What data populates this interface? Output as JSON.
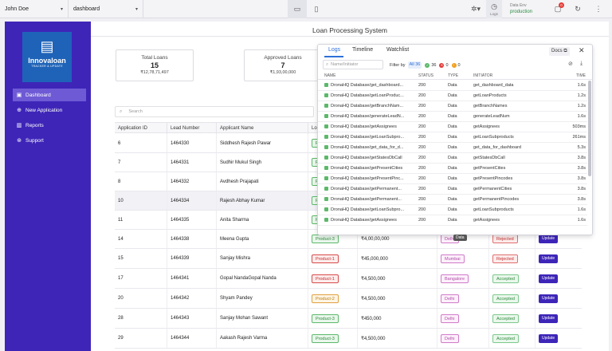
{
  "topbar": {
    "user": "John Doe",
    "page": "dashboard",
    "logs_label": "Logs",
    "env_label": "Data Env",
    "env_value": "production",
    "notif_count": "0"
  },
  "sidebar": {
    "logo_name": "Innovaloan",
    "logo_tag": "TRACKER & UPDATE",
    "items": [
      {
        "label": "Dashboard",
        "icon": "dashboard-icon"
      },
      {
        "label": "New Application",
        "icon": "plus-circle-icon"
      },
      {
        "label": "Reports",
        "icon": "reports-icon"
      },
      {
        "label": "Support",
        "icon": "support-icon"
      }
    ]
  },
  "main": {
    "title": "Loan Processing System",
    "stats": [
      {
        "label": "Total Loans",
        "count": "15",
        "amount": "₹12,78,71,497"
      },
      {
        "label": "Approved Loans",
        "count": "7",
        "amount": "₹1,93,00,000"
      }
    ],
    "search_placeholder": "Search"
  },
  "table": {
    "headers": [
      "Application ID",
      "Lead Number",
      "Applicant Name",
      "Lo"
    ],
    "rows": [
      {
        "id": "6",
        "lead": "1464330",
        "name": "Siddhesh Rajesh Pawar",
        "product": "P"
      },
      {
        "id": "7",
        "lead": "1464331",
        "name": "Sudhir Mukul Singh",
        "product": "P"
      },
      {
        "id": "8",
        "lead": "1464332",
        "name": "Avdhesh Prajapati",
        "product": "P"
      },
      {
        "id": "10",
        "lead": "1464334",
        "name": "Rajesh Abhay Kumar",
        "product": "P"
      },
      {
        "id": "11",
        "lead": "1464335",
        "name": "Anita Sharma",
        "product": "P"
      },
      {
        "id": "14",
        "lead": "1464338",
        "name": "Meena Gupta",
        "product": "Product-3",
        "amount": "₹4,00,00,000",
        "city": "Delhi",
        "status": "Rejected",
        "action": "Update"
      },
      {
        "id": "15",
        "lead": "1464339",
        "name": "Sanjay Mishra",
        "product": "Product-1",
        "amount": "₹45,000,000",
        "city": "Mumbai",
        "status": "Rejected",
        "action": "Update"
      },
      {
        "id": "17",
        "lead": "1464341",
        "name": "Gopal NandaGopal Nanda",
        "product": "Product-1",
        "amount": "₹4,500,000",
        "city": "Bangalore",
        "status": "Accepted",
        "action": "Update"
      },
      {
        "id": "20",
        "lead": "1464342",
        "name": "Shyam Pandey",
        "product": "Product-2",
        "amount": "₹4,500,000",
        "city": "Delhi",
        "status": "Accepted",
        "action": "Update"
      },
      {
        "id": "28",
        "lead": "1464343",
        "name": "Sanjay Mohan Sawant",
        "product": "Product-3",
        "amount": "₹450,000",
        "city": "Delhi",
        "status": "Accepted",
        "action": "Update"
      },
      {
        "id": "29",
        "lead": "1464344",
        "name": "Aakash Rajesh Varma",
        "product": "Product-3",
        "amount": "₹4,500,000",
        "city": "Delhi",
        "status": "Accepted",
        "action": "Update"
      }
    ]
  },
  "logs_panel": {
    "tabs": [
      "Logs",
      "Timeline",
      "Watchlist"
    ],
    "docs_label": "Docs",
    "search_placeholder": "Name/Initiator",
    "filter_label": "Filter by",
    "filter_all": "All",
    "filter_all_count": "36",
    "filter_ok_count": "36",
    "filter_err_count": "0",
    "filter_warn_count": "0",
    "columns": [
      "NAME",
      "STATUS",
      "TYPE",
      "INITIATOR",
      "TIME"
    ],
    "rows": [
      {
        "name": "DronaHQ Database/get_dashboard...",
        "status": "200",
        "type": "Data",
        "initiator": "get_dashboard_data",
        "time": "1.6s"
      },
      {
        "name": "DronaHQ Database/getLoanProduc...",
        "status": "200",
        "type": "Data",
        "initiator": "getLoanProducts",
        "time": "1.2s"
      },
      {
        "name": "DronaHQ Database/getBranchNam...",
        "status": "200",
        "type": "Data",
        "initiator": "getBranchNames",
        "time": "1.2s"
      },
      {
        "name": "DronaHQ Database/generateLeadN...",
        "status": "200",
        "type": "Data",
        "initiator": "generateLeadNum",
        "time": "1.6s"
      },
      {
        "name": "DronaHQ Database/getAssignees",
        "status": "200",
        "type": "Data",
        "initiator": "getAssignees",
        "time": "503ms"
      },
      {
        "name": "DronaHQ Database/getLoanSubpro...",
        "status": "200",
        "type": "Data",
        "initiator": "getLoanSubproducts",
        "time": "261ms"
      },
      {
        "name": "DronaHQ Database/get_data_for_d...",
        "status": "200",
        "type": "Data",
        "initiator": "get_data_for_dashboard",
        "time": "5.3s"
      },
      {
        "name": "DronaHQ Database/getStatesDbCall",
        "status": "200",
        "type": "Data",
        "initiator": "getStatesDbCall",
        "time": "3.8s"
      },
      {
        "name": "DronaHQ Database/getPresentCities",
        "status": "200",
        "type": "Data",
        "initiator": "getPresentCities",
        "time": "3.8s"
      },
      {
        "name": "DronaHQ Database/getPresentPinc...",
        "status": "200",
        "type": "Data",
        "initiator": "getPresentPincodes",
        "time": "3.8s"
      },
      {
        "name": "DronaHQ Database/getPermanent...",
        "status": "200",
        "type": "Data",
        "initiator": "getPermanentCities",
        "time": "3.8s"
      },
      {
        "name": "DronaHQ Database/getPermanent...",
        "status": "200",
        "type": "Data",
        "initiator": "getPermanentPincodes",
        "time": "3.8s"
      },
      {
        "name": "DronaHQ Database/getLoanSubpro...",
        "status": "200",
        "type": "Data",
        "initiator": "getLoanSubproducts",
        "time": "1.6s"
      },
      {
        "name": "DronaHQ Database/getAssignees",
        "status": "200",
        "type": "Data",
        "initiator": "getAssignees",
        "time": "1.6s"
      }
    ],
    "tooltip": "Data"
  }
}
